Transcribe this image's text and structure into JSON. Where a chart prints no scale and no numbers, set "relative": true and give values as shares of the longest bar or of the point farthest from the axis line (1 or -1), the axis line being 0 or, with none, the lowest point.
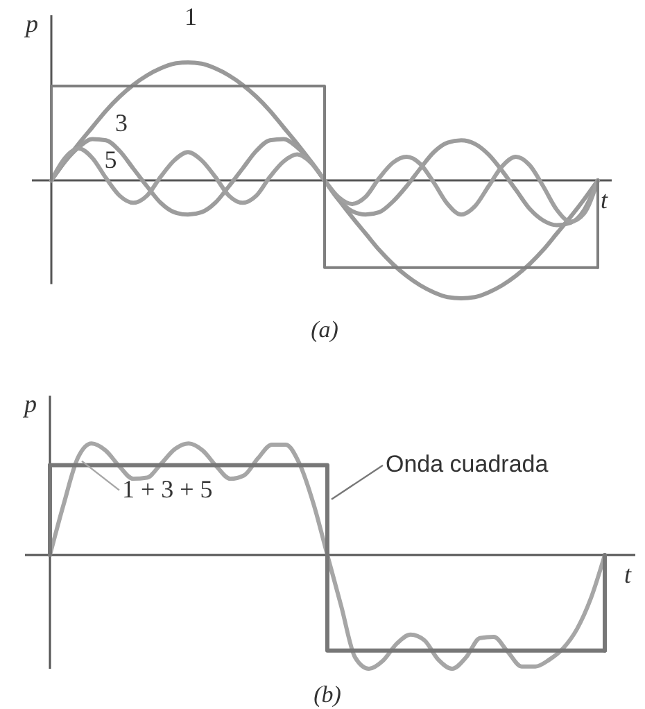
{
  "chart_data": [
    {
      "type": "line",
      "relative": true,
      "title": "(a)",
      "xlabel": "t",
      "ylabel": "p",
      "categories": [
        null,
        null,
        null,
        null,
        null,
        null,
        null,
        null,
        null,
        null,
        null,
        null,
        null,
        null,
        null,
        null,
        null,
        null,
        null,
        null,
        null,
        null,
        null,
        null,
        null,
        null,
        null,
        null,
        null,
        null,
        null,
        null,
        null,
        null,
        null,
        null,
        null,
        null,
        null,
        null,
        null
      ],
      "series": [
        {
          "name": "1",
          "color": "#999999",
          "values": [
            0,
            0.16,
            0.31,
            0.45,
            0.59,
            0.71,
            0.81,
            0.89,
            0.95,
            0.99,
            1,
            0.99,
            0.95,
            0.89,
            0.81,
            0.71,
            0.59,
            0.45,
            0.31,
            0.16,
            0,
            -0.16,
            -0.31,
            -0.45,
            -0.59,
            -0.71,
            -0.81,
            -0.89,
            -0.95,
            -0.99,
            -1,
            -0.99,
            -0.95,
            -0.89,
            -0.81,
            -0.71,
            -0.59,
            -0.45,
            -0.31,
            -0.16,
            0
          ]
        },
        {
          "name": "3",
          "color": "#9c9c9c",
          "values": [
            0,
            0.16,
            0.28,
            0.35,
            0.34,
            0.25,
            0.1,
            -0.05,
            -0.19,
            -0.27,
            -0.29,
            -0.27,
            -0.19,
            -0.05,
            0.1,
            0.25,
            0.34,
            0.35,
            0.28,
            0.16,
            0,
            -0.16,
            -0.26,
            -0.29,
            -0.27,
            -0.18,
            -0.05,
            0.1,
            0.24,
            0.32,
            0.34,
            0.31,
            0.22,
            0.08,
            -0.08,
            -0.24,
            -0.34,
            -0.38,
            -0.36,
            -0.25,
            0
          ]
        },
        {
          "name": "5",
          "color": "#a0a0a0",
          "values": [
            0,
            0.19,
            0.27,
            0.19,
            0.02,
            -0.13,
            -0.19,
            -0.13,
            0.03,
            0.17,
            0.24,
            0.17,
            0.03,
            -0.13,
            -0.19,
            -0.13,
            0.03,
            0.16,
            0.22,
            0.15,
            0,
            -0.14,
            -0.2,
            -0.14,
            0.02,
            0.15,
            0.2,
            0.14,
            -0.02,
            -0.2,
            -0.29,
            -0.22,
            -0.05,
            0.12,
            0.2,
            0.13,
            -0.05,
            -0.25,
            -0.35,
            -0.28,
            0
          ]
        },
        {
          "type": "step",
          "color": "#7f7f7f",
          "values": [
            0.8,
            0.8,
            0.8,
            0.8,
            0.8,
            0.8,
            0.8,
            0.8,
            0.8,
            0.8,
            0.8,
            0.8,
            0.8,
            0.8,
            0.8,
            0.8,
            0.8,
            0.8,
            0.8,
            0.8,
            -0.74,
            -0.74,
            -0.74,
            -0.74,
            -0.74,
            -0.74,
            -0.74,
            -0.74,
            -0.74,
            -0.74,
            -0.74,
            -0.74,
            -0.74,
            -0.74,
            -0.74,
            -0.74,
            -0.74,
            -0.74,
            -0.74,
            -0.74,
            -0.74
          ]
        }
      ]
    },
    {
      "type": "line",
      "relative": true,
      "title": "(b)",
      "xlabel": "t",
      "ylabel": "p",
      "categories": [
        null,
        null,
        null,
        null,
        null,
        null,
        null,
        null,
        null,
        null,
        null,
        null,
        null,
        null,
        null,
        null,
        null,
        null,
        null,
        null,
        null,
        null,
        null,
        null,
        null,
        null,
        null,
        null,
        null,
        null,
        null,
        null,
        null,
        null,
        null,
        null,
        null,
        null,
        null,
        null,
        null
      ],
      "series": [
        {
          "name": "1 + 3 + 5",
          "color": "#a6a6a6",
          "values": [
            0,
            0.45,
            0.85,
            0.98,
            0.92,
            0.78,
            0.67,
            0.68,
            0.8,
            0.93,
            0.98,
            0.92,
            0.78,
            0.67,
            0.7,
            0.85,
            0.97,
            0.97,
            0.8,
            0.45,
            0,
            -0.45,
            -0.9,
            -1,
            -0.93,
            -0.78,
            -0.7,
            -0.75,
            -0.92,
            -1,
            -0.9,
            -0.73,
            -0.72,
            -0.85,
            -0.98,
            -0.98,
            -0.92,
            -0.82,
            -0.65,
            -0.38,
            0
          ]
        },
        {
          "name": "Onda cuadrada",
          "type": "step",
          "color": "#777777",
          "values": [
            0.79,
            0.79,
            0.79,
            0.79,
            0.79,
            0.79,
            0.79,
            0.79,
            0.79,
            0.79,
            0.79,
            0.79,
            0.79,
            0.79,
            0.79,
            0.79,
            0.79,
            0.79,
            0.79,
            0.79,
            -0.84,
            -0.84,
            -0.84,
            -0.84,
            -0.84,
            -0.84,
            -0.84,
            -0.84,
            -0.84,
            -0.84,
            -0.84,
            -0.84,
            -0.84,
            -0.84,
            -0.84,
            -0.84,
            -0.84,
            -0.84,
            -0.84,
            -0.84,
            -0.84
          ]
        }
      ]
    }
  ]
}
